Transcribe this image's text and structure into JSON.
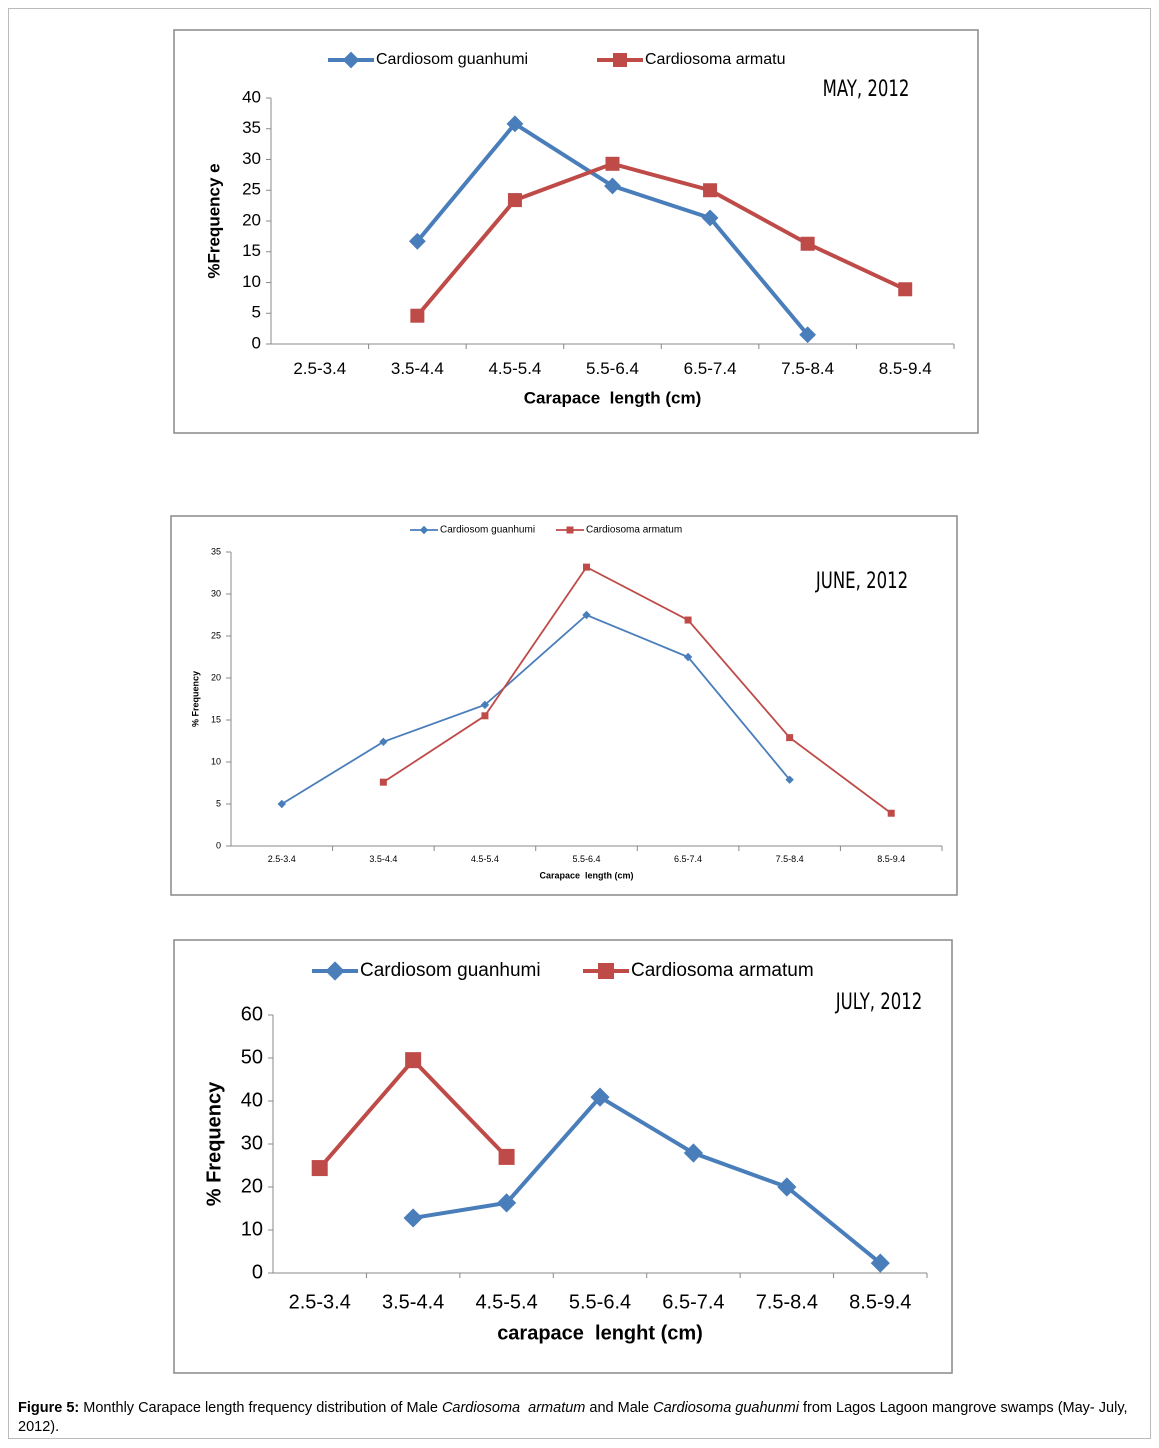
{
  "chart_data": [
    {
      "type": "line",
      "annotation": "MAY, 2012",
      "x_label": "Carapace  length (cm)",
      "y_label": "%Frequency e",
      "categories": [
        "2.5-3.4",
        "3.5-4.4",
        "4.5-5.4",
        "5.5-6.4",
        "6.5-7.4",
        "7.5-8.4",
        "8.5-9.4"
      ],
      "series": [
        {
          "name": "Cardiosom guanhumi",
          "color": "#4a7ebb",
          "marker": "diamond",
          "values": [
            null,
            16.7,
            35.8,
            25.7,
            20.5,
            1.5,
            null
          ]
        },
        {
          "name": "Cardiosoma armatu",
          "color": "#be4b48",
          "marker": "square",
          "values": [
            null,
            4.6,
            23.4,
            29.3,
            25.0,
            16.3,
            8.9
          ]
        }
      ],
      "ylim": [
        0,
        40
      ],
      "yticks": [
        0,
        5,
        10,
        15,
        20,
        25,
        30,
        35,
        40
      ],
      "grid": false,
      "legend": "top"
    },
    {
      "type": "line",
      "annotation": "JUNE, 2012",
      "x_label": "Carapace  length (cm)",
      "y_label": "% Frequency",
      "categories": [
        "2.5-3.4",
        "3.5-4.4",
        "4.5-5.4",
        "5.5-6.4",
        "6.5-7.4",
        "7.5-8.4",
        "8.5-9.4"
      ],
      "series": [
        {
          "name": "Cardiosom guanhumi",
          "color": "#4a7ebb",
          "marker": "diamond",
          "values": [
            5.0,
            12.4,
            16.8,
            27.5,
            22.5,
            7.9,
            null
          ]
        },
        {
          "name": "Cardiosoma armatum",
          "color": "#be4b48",
          "marker": "square",
          "values": [
            null,
            7.6,
            15.5,
            33.2,
            26.9,
            12.9,
            3.9
          ]
        }
      ],
      "ylim": [
        0,
        35
      ],
      "yticks": [
        0,
        5,
        10,
        15,
        20,
        25,
        30,
        35
      ],
      "grid": false,
      "legend": "top"
    },
    {
      "type": "line",
      "annotation": "JULY, 2012",
      "x_label": "carapace  lenght (cm)",
      "y_label": "% Frequency",
      "categories": [
        "2.5-3.4",
        "3.5-4.4",
        "4.5-5.4",
        "5.5-6.4",
        "6.5-7.4",
        "7.5-8.4",
        "8.5-9.4"
      ],
      "series": [
        {
          "name": "Cardiosom guanhumi",
          "color": "#4a7ebb",
          "marker": "diamond",
          "values": [
            null,
            12.8,
            16.3,
            40.9,
            27.9,
            20.0,
            2.3
          ]
        },
        {
          "name": "Cardiosoma armatum",
          "color": "#be4b48",
          "marker": "square",
          "values": [
            24.4,
            49.5,
            27.0,
            null,
            null,
            null,
            null
          ]
        }
      ],
      "ylim": [
        0,
        60
      ],
      "yticks": [
        0,
        10,
        20,
        30,
        40,
        50,
        60
      ],
      "grid": false,
      "legend": "top"
    }
  ],
  "caption": [
    {
      "text": "Figure 5:",
      "bold": true,
      "italic": false
    },
    {
      "text": " Monthly Carapace length frequency distribution of Male ",
      "bold": false,
      "italic": false
    },
    {
      "text": "Cardiosoma  armatum",
      "bold": false,
      "italic": true
    },
    {
      "text": " and Male ",
      "bold": false,
      "italic": false
    },
    {
      "text": "Cardiosoma guahunmi",
      "bold": false,
      "italic": true
    },
    {
      "text": " from Lagos Lagoon mangrove swamps (May- July, 2012).",
      "bold": false,
      "italic": false
    }
  ]
}
